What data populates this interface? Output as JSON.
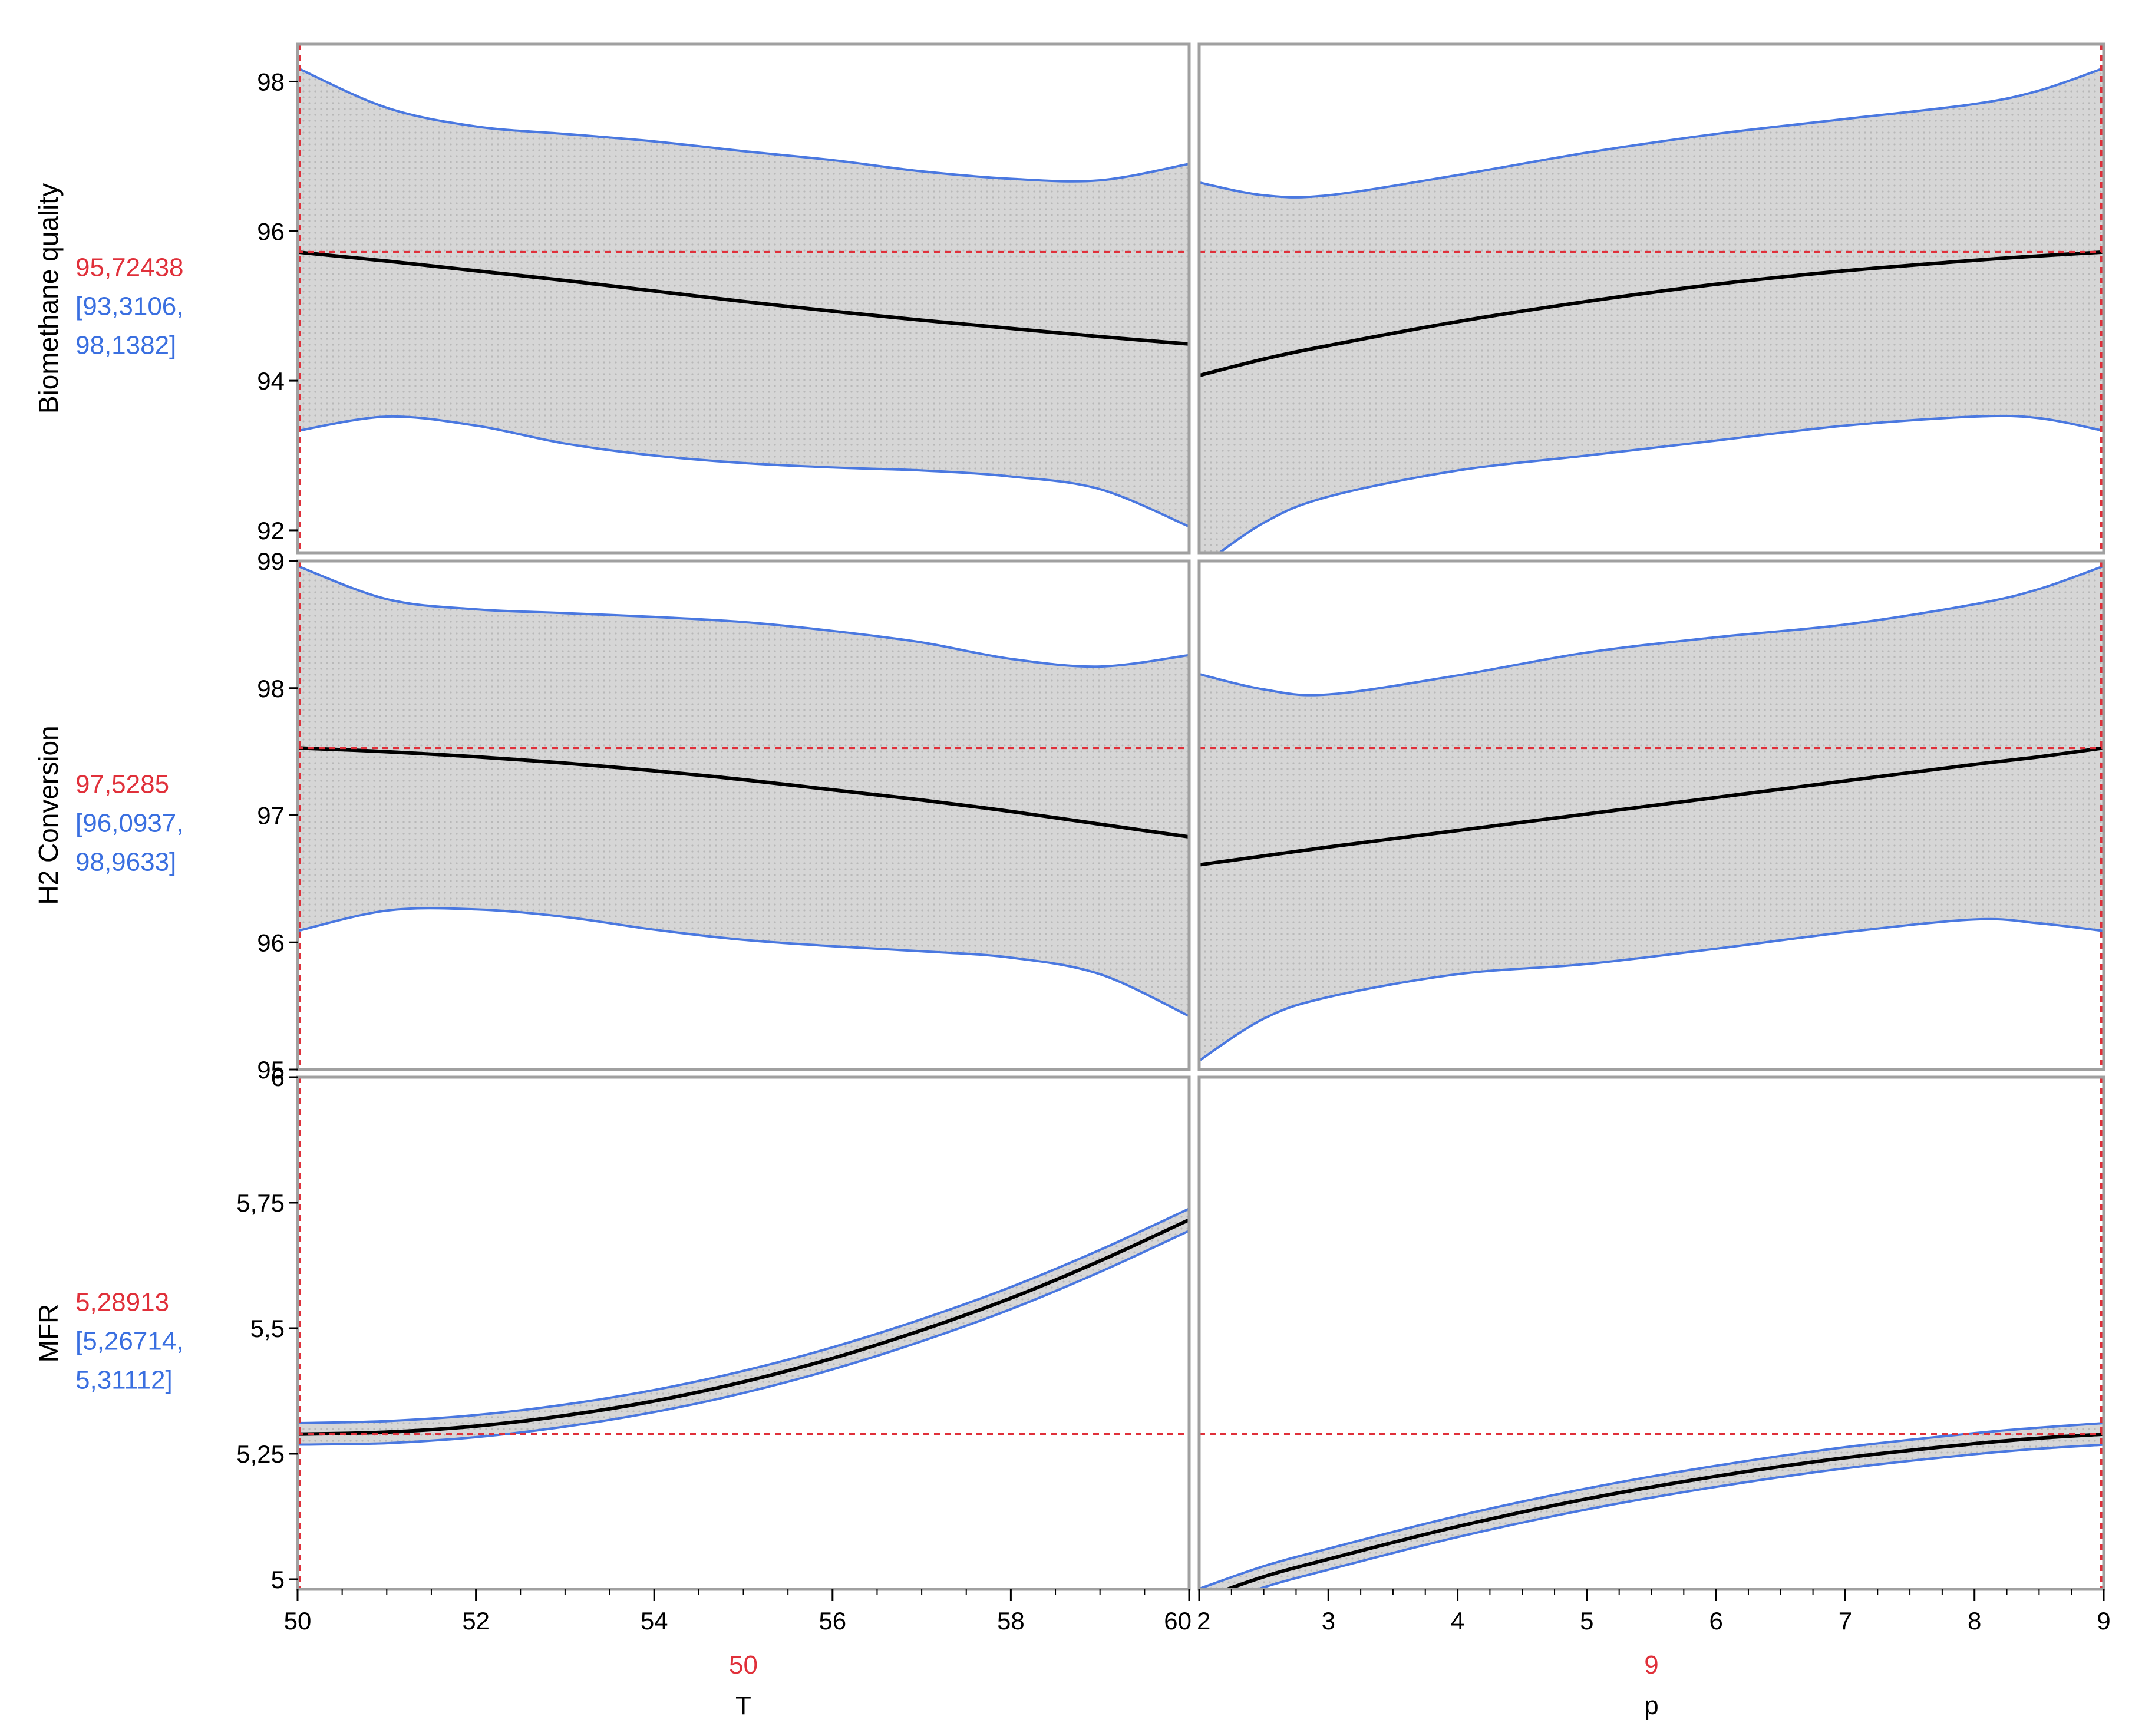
{
  "chart_data": {
    "type": "line",
    "title": "",
    "colors": {
      "prediction": "#000000",
      "ci_band_fill": "#d4d4d4",
      "ci_band_edge": "#4a78e0",
      "current_value": "#e0303a",
      "ci_label": "#3a6fe0",
      "frame": "#a0a0a0"
    },
    "factors": [
      {
        "name": "T",
        "current": "50",
        "range": [
          50,
          60
        ],
        "ticks": [
          50,
          52,
          54,
          56,
          58,
          60
        ]
      },
      {
        "name": "p",
        "current": "9",
        "range": [
          2,
          9
        ],
        "ticks": [
          2,
          3,
          4,
          5,
          6,
          7,
          8,
          9
        ]
      }
    ],
    "responses": [
      {
        "name": "Biomethane quality",
        "current_value": "95,72438",
        "ci_lines": [
          "[93,3106,",
          "98,1382]"
        ],
        "ylim": [
          91.7,
          98.5
        ],
        "yticks": [
          {
            "v": 92,
            "label": "92"
          },
          {
            "v": 94,
            "label": "94"
          },
          {
            "v": 96,
            "label": "96"
          },
          {
            "v": 98,
            "label": "98"
          }
        ],
        "current_y": 95.72,
        "panels": [
          {
            "x": [
              50,
              51,
              52,
              53,
              54,
              55,
              56,
              57,
              58,
              59,
              60
            ],
            "y": [
              95.72,
              95.6,
              95.47,
              95.34,
              95.2,
              95.06,
              94.93,
              94.81,
              94.7,
              94.59,
              94.49
            ],
            "lower": [
              93.33,
              93.52,
              93.4,
              93.16,
              93.0,
              92.9,
              92.84,
              92.8,
              92.72,
              92.55,
              92.05
            ],
            "upper": [
              98.18,
              97.65,
              97.4,
              97.3,
              97.2,
              97.07,
              96.95,
              96.8,
              96.7,
              96.68,
              96.9
            ]
          },
          {
            "x": [
              2,
              2.5,
              3,
              4,
              5,
              6,
              7,
              8,
              8.5,
              9
            ],
            "y": [
              94.07,
              94.29,
              94.47,
              94.79,
              95.06,
              95.29,
              95.47,
              95.61,
              95.67,
              95.72
            ],
            "lower": [
              91.5,
              92.1,
              92.45,
              92.8,
              93.0,
              93.2,
              93.4,
              93.52,
              93.5,
              93.33
            ],
            "upper": [
              96.65,
              96.48,
              96.48,
              96.75,
              97.05,
              97.3,
              97.5,
              97.7,
              97.88,
              98.18
            ]
          }
        ]
      },
      {
        "name": "H2 Conversion",
        "current_value": "97,5285",
        "ci_lines": [
          "[96,0937,",
          "98,9633]"
        ],
        "ylim": [
          95.0,
          99.0
        ],
        "yticks": [
          {
            "v": 95,
            "label": "95"
          },
          {
            "v": 96,
            "label": "96"
          },
          {
            "v": 97,
            "label": "97"
          },
          {
            "v": 98,
            "label": "98"
          },
          {
            "v": 99,
            "label": "99"
          }
        ],
        "current_y": 97.53,
        "panels": [
          {
            "x": [
              50,
              51,
              52,
              53,
              54,
              55,
              56,
              57,
              58,
              59,
              60
            ],
            "y": [
              97.53,
              97.5,
              97.46,
              97.41,
              97.35,
              97.28,
              97.2,
              97.12,
              97.03,
              96.93,
              96.83
            ],
            "lower": [
              96.09,
              96.25,
              96.26,
              96.2,
              96.1,
              96.02,
              95.97,
              95.93,
              95.88,
              95.75,
              95.42
            ],
            "upper": [
              98.96,
              98.7,
              98.62,
              98.59,
              98.56,
              98.52,
              98.45,
              98.36,
              98.23,
              98.17,
              98.26
            ]
          },
          {
            "x": [
              2,
              2.5,
              3,
              4,
              5,
              6,
              7,
              8,
              8.5,
              9
            ],
            "y": [
              96.61,
              96.68,
              96.75,
              96.88,
              97.01,
              97.14,
              97.27,
              97.4,
              97.46,
              97.53
            ],
            "lower": [
              95.07,
              95.4,
              95.57,
              95.75,
              95.83,
              95.95,
              96.08,
              96.18,
              96.15,
              96.09
            ],
            "upper": [
              98.11,
              97.99,
              97.95,
              98.1,
              98.28,
              98.4,
              98.5,
              98.66,
              98.78,
              98.96
            ]
          }
        ]
      },
      {
        "name": "MFR",
        "current_value": "5,28913",
        "ci_lines": [
          "[5,26714,",
          "5,31112]"
        ],
        "ylim": [
          4.98,
          6.0
        ],
        "yticks": [
          {
            "v": 5,
            "label": "5"
          },
          {
            "v": 5.25,
            "label": "5,25"
          },
          {
            "v": 5.5,
            "label": "5,5"
          },
          {
            "v": 5.75,
            "label": "5,75"
          },
          {
            "v": 6,
            "label": "6"
          }
        ],
        "current_y": 5.289,
        "panels": [
          {
            "x": [
              50,
              51,
              52,
              53,
              54,
              55,
              56,
              57,
              58,
              59,
              60
            ],
            "y": [
              5.289,
              5.293,
              5.305,
              5.326,
              5.355,
              5.393,
              5.44,
              5.496,
              5.56,
              5.634,
              5.716
            ],
            "lower": [
              5.268,
              5.271,
              5.283,
              5.304,
              5.333,
              5.371,
              5.418,
              5.474,
              5.538,
              5.612,
              5.694
            ],
            "upper": [
              5.311,
              5.315,
              5.327,
              5.348,
              5.377,
              5.415,
              5.462,
              5.518,
              5.582,
              5.656,
              5.738
            ]
          },
          {
            "x": [
              2,
              2.5,
              3,
              4,
              5,
              6,
              7,
              8,
              8.5,
              9
            ],
            "y": [
              4.96,
              5.005,
              5.04,
              5.105,
              5.16,
              5.205,
              5.242,
              5.27,
              5.281,
              5.289
            ],
            "lower": [
              4.939,
              4.984,
              5.019,
              5.084,
              5.139,
              5.184,
              5.221,
              5.249,
              5.26,
              5.268
            ],
            "upper": [
              4.981,
              5.026,
              5.061,
              5.126,
              5.181,
              5.226,
              5.263,
              5.291,
              5.302,
              5.311
            ]
          }
        ]
      }
    ]
  }
}
